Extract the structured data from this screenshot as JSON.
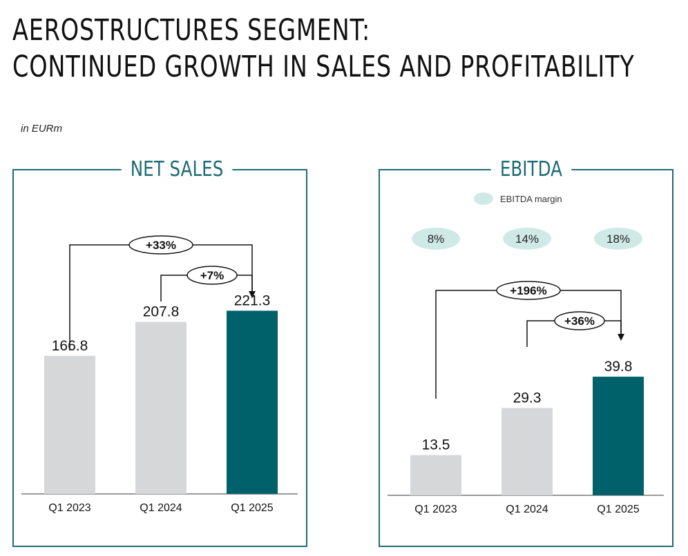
{
  "page": {
    "title_line1": "AEROSTRUCTURES SEGMENT:",
    "title_line2": "CONTINUED GROWTH IN SALES AND PROFITABILITY",
    "unit_note": "in EURm"
  },
  "colors": {
    "accent": "#1d6b74",
    "bar_highlight": "#00616b",
    "bar_grey": "#d6d7d9",
    "margin_pill": "#cfe9e6"
  },
  "chart_data": [
    {
      "type": "bar",
      "title": "NET SALES",
      "categories": [
        "Q1 2023",
        "Q1 2024",
        "Q1 2025"
      ],
      "values": [
        166.8,
        207.8,
        221.3
      ],
      "value_labels": [
        "166.8",
        "207.8",
        "221.3"
      ],
      "highlight_index": 2,
      "growth": [
        {
          "label": "+33%",
          "from": "Q1 2023",
          "to": "Q1 2025"
        },
        {
          "label": "+7%",
          "from": "Q1 2024",
          "to": "Q1 2025"
        }
      ]
    },
    {
      "type": "bar",
      "title": "EBITDA",
      "categories": [
        "Q1 2023",
        "Q1 2024",
        "Q1 2025"
      ],
      "values": [
        13.5,
        29.3,
        39.8
      ],
      "value_labels": [
        "13.5",
        "29.3",
        "39.8"
      ],
      "highlight_index": 2,
      "legend": "EBITDA margin",
      "margins": [
        "8%",
        "14%",
        "18%"
      ],
      "growth": [
        {
          "label": "+196%",
          "from": "Q1 2023",
          "to": "Q1 2025"
        },
        {
          "label": "+36%",
          "from": "Q1 2024",
          "to": "Q1 2025"
        }
      ]
    }
  ]
}
